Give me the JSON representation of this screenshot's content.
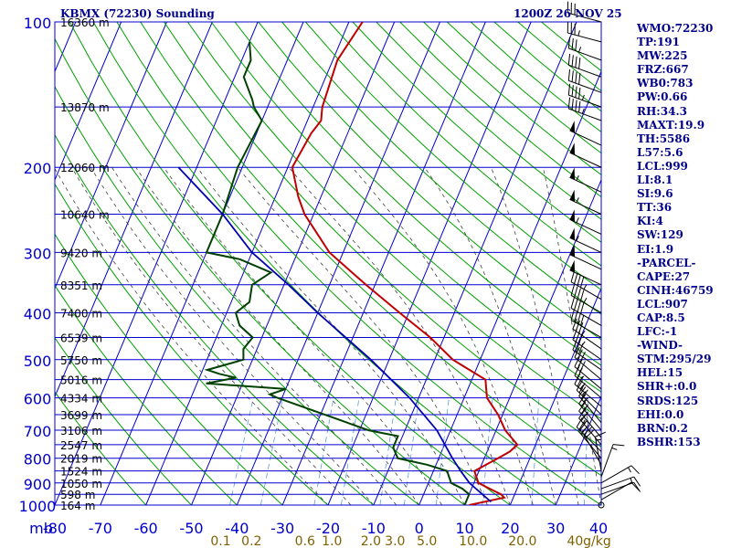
{
  "header": {
    "station": "KBMX (72230) Sounding",
    "time": "1200Z 26 NOV 25"
  },
  "colors": {
    "grid": "#0000cc",
    "isotherm": "#0000cc",
    "dry_adiabat": "#00a000",
    "moist_adiabat": "#404040",
    "mixing_ratio": "#5aa0e0",
    "temperature": "#c00000",
    "dewpoint": "#004000",
    "parcel": "#0000b0",
    "mixing_label": "#806000",
    "index_text": "#00008b"
  },
  "chart_data": {
    "type": "line",
    "y_scale": "log-pressure",
    "ylim": [
      1000,
      100
    ],
    "xlim": [
      -80,
      40
    ],
    "pressure_ticks": [
      "100",
      "200",
      "300",
      "400",
      "500",
      "600",
      "700",
      "800",
      "900",
      "1000"
    ],
    "y_unit": "mb",
    "temp_ticks": [
      "-80",
      "-70",
      "-60",
      "-50",
      "-40",
      "-30",
      "-20",
      "-10",
      "0",
      "10",
      "20",
      "30",
      "40"
    ],
    "mixing_ratio_labels": [
      "0.1",
      "0.2",
      "0.6",
      "1.0",
      "2.0",
      "3.0",
      "5.0",
      "10.0",
      "20.0",
      "40",
      "g/kg"
    ],
    "height_labels": [
      {
        "p": 100,
        "label": "16360 m"
      },
      {
        "p": 150,
        "label": "13870 m"
      },
      {
        "p": 200,
        "label": "12060 m"
      },
      {
        "p": 250,
        "label": "10640 m"
      },
      {
        "p": 300,
        "label": "9420 m"
      },
      {
        "p": 350,
        "label": "8351 m"
      },
      {
        "p": 400,
        "label": "7400 m"
      },
      {
        "p": 450,
        "label": "6539 m"
      },
      {
        "p": 500,
        "label": "5750 m"
      },
      {
        "p": 550,
        "label": "5016 m"
      },
      {
        "p": 600,
        "label": "4334 m"
      },
      {
        "p": 650,
        "label": "3699 m"
      },
      {
        "p": 700,
        "label": "3106 m"
      },
      {
        "p": 750,
        "label": "2547 m"
      },
      {
        "p": 800,
        "label": "2019 m"
      },
      {
        "p": 850,
        "label": "1524 m"
      },
      {
        "p": 900,
        "label": "1050 m"
      },
      {
        "p": 950,
        "label": "598 m"
      },
      {
        "p": 1000,
        "label": "164 m"
      }
    ],
    "series": [
      {
        "key": "temperature",
        "points": [
          [
            1000,
            11
          ],
          [
            965,
            18
          ],
          [
            950,
            17
          ],
          [
            925,
            14
          ],
          [
            900,
            11
          ],
          [
            850,
            9
          ],
          [
            800,
            13
          ],
          [
            775,
            15
          ],
          [
            750,
            16
          ],
          [
            700,
            12
          ],
          [
            650,
            9
          ],
          [
            600,
            5
          ],
          [
            550,
            3
          ],
          [
            500,
            -6
          ],
          [
            450,
            -13
          ],
          [
            400,
            -22
          ],
          [
            350,
            -32
          ],
          [
            300,
            -43
          ],
          [
            250,
            -52
          ],
          [
            230,
            -55
          ],
          [
            200,
            -59
          ],
          [
            170,
            -58
          ],
          [
            160,
            -57
          ],
          [
            150,
            -58
          ],
          [
            120,
            -59
          ],
          [
            100,
            -57
          ]
        ]
      },
      {
        "key": "dewpoint",
        "points": [
          [
            1000,
            10
          ],
          [
            950,
            10
          ],
          [
            925,
            8
          ],
          [
            900,
            5
          ],
          [
            875,
            4
          ],
          [
            850,
            3
          ],
          [
            825,
            -2
          ],
          [
            800,
            -9
          ],
          [
            760,
            -11
          ],
          [
            740,
            -11
          ],
          [
            720,
            -11
          ],
          [
            700,
            -18
          ],
          [
            600,
            -41
          ],
          [
            590,
            -43
          ],
          [
            575,
            -40
          ],
          [
            560,
            -58
          ],
          [
            545,
            -52
          ],
          [
            535,
            -56
          ],
          [
            525,
            -59
          ],
          [
            500,
            -52
          ],
          [
            475,
            -53
          ],
          [
            450,
            -52
          ],
          [
            425,
            -56
          ],
          [
            400,
            -58
          ],
          [
            380,
            -56
          ],
          [
            350,
            -57
          ],
          [
            330,
            -54
          ],
          [
            310,
            -62
          ],
          [
            300,
            -70
          ],
          [
            250,
            -70
          ],
          [
            200,
            -71
          ],
          [
            160,
            -70
          ],
          [
            150,
            -73
          ],
          [
            145,
            -74
          ],
          [
            130,
            -78
          ],
          [
            120,
            -78
          ],
          [
            110,
            -80
          ]
        ]
      },
      {
        "key": "parcel",
        "points": [
          [
            985,
            15.5
          ],
          [
            900,
            9
          ],
          [
            850,
            6
          ],
          [
            800,
            3
          ],
          [
            700,
            -3
          ],
          [
            600,
            -12
          ],
          [
            500,
            -24
          ],
          [
            400,
            -40
          ],
          [
            350,
            -49
          ],
          [
            300,
            -60
          ],
          [
            250,
            -70
          ],
          [
            200,
            -84
          ]
        ]
      }
    ],
    "wind_barbs": [
      {
        "p": 1000,
        "dir": 0,
        "spd": 0
      },
      {
        "p": 975,
        "dir": 60,
        "spd": 10
      },
      {
        "p": 950,
        "dir": 70,
        "spd": 10
      },
      {
        "p": 925,
        "dir": 70,
        "spd": 15
      },
      {
        "p": 900,
        "dir": 60,
        "spd": 15
      },
      {
        "p": 875,
        "dir": 20,
        "spd": 15
      },
      {
        "p": 850,
        "dir": 350,
        "spd": 15
      },
      {
        "p": 825,
        "dir": 330,
        "spd": 20
      },
      {
        "p": 800,
        "dir": 320,
        "spd": 20
      },
      {
        "p": 775,
        "dir": 315,
        "spd": 25
      },
      {
        "p": 750,
        "dir": 320,
        "spd": 25
      },
      {
        "p": 725,
        "dir": 320,
        "spd": 25
      },
      {
        "p": 700,
        "dir": 320,
        "spd": 25
      },
      {
        "p": 675,
        "dir": 320,
        "spd": 25
      },
      {
        "p": 650,
        "dir": 315,
        "spd": 25
      },
      {
        "p": 625,
        "dir": 310,
        "spd": 25
      },
      {
        "p": 600,
        "dir": 310,
        "spd": 25
      },
      {
        "p": 575,
        "dir": 310,
        "spd": 30
      },
      {
        "p": 550,
        "dir": 310,
        "spd": 30
      },
      {
        "p": 525,
        "dir": 305,
        "spd": 30
      },
      {
        "p": 500,
        "dir": 305,
        "spd": 35
      },
      {
        "p": 475,
        "dir": 305,
        "spd": 35
      },
      {
        "p": 450,
        "dir": 300,
        "spd": 40
      },
      {
        "p": 425,
        "dir": 300,
        "spd": 40
      },
      {
        "p": 400,
        "dir": 300,
        "spd": 45
      },
      {
        "p": 375,
        "dir": 300,
        "spd": 45
      },
      {
        "p": 350,
        "dir": 295,
        "spd": 50
      },
      {
        "p": 325,
        "dir": 295,
        "spd": 50
      },
      {
        "p": 300,
        "dir": 295,
        "spd": 55
      },
      {
        "p": 275,
        "dir": 295,
        "spd": 55
      },
      {
        "p": 250,
        "dir": 295,
        "spd": 55
      },
      {
        "p": 225,
        "dir": 295,
        "spd": 55
      },
      {
        "p": 200,
        "dir": 295,
        "spd": 50
      },
      {
        "p": 180,
        "dir": 295,
        "spd": 50
      },
      {
        "p": 160,
        "dir": 290,
        "spd": 45
      },
      {
        "p": 150,
        "dir": 290,
        "spd": 45
      },
      {
        "p": 140,
        "dir": 290,
        "spd": 40
      },
      {
        "p": 130,
        "dir": 290,
        "spd": 40
      },
      {
        "p": 120,
        "dir": 290,
        "spd": 35
      },
      {
        "p": 110,
        "dir": 285,
        "spd": 35
      },
      {
        "p": 100,
        "dir": 285,
        "spd": 30
      }
    ]
  },
  "indices": [
    "WMO:72230",
    "TP:191",
    "MW:225",
    "FRZ:667",
    "WB0:783",
    "PW:0.66",
    "RH:34.3",
    "MAXT:19.9",
    "TH:5586",
    "L57:5.6",
    "LCL:999",
    "LI:8.1",
    "SI:9.6",
    "TT:36",
    "KI:4",
    "SW:129",
    "EI:1.9",
    "-PARCEL-",
    "CAPE:27",
    "CINH:46759",
    "LCL:907",
    "CAP:8.5",
    "LFC:-1",
    "-WIND-",
    "STM:295/29",
    "HEL:15",
    "SHR+:0.0",
    "SRDS:125",
    "EHI:0.0",
    "BRN:0.2",
    "BSHR:153"
  ]
}
